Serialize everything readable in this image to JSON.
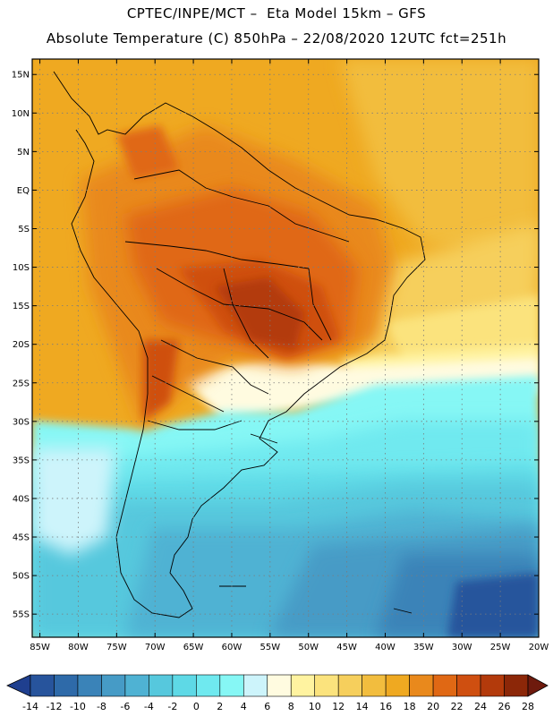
{
  "header": {
    "line1": "CPTEC/INPE/MCT –  Eta Model 15km – GFS",
    "line2": "Absolute Temperature (C) 850hPa – 22/08/2020 12UTC fct=251h"
  },
  "map": {
    "lat_labels": [
      "15N",
      "10N",
      "5N",
      "EQ",
      "5S",
      "10S",
      "15S",
      "20S",
      "25S",
      "30S",
      "35S",
      "40S",
      "45S",
      "50S",
      "55S"
    ],
    "lon_labels": [
      "85W",
      "80W",
      "75W",
      "70W",
      "65W",
      "60W",
      "55W",
      "50W",
      "45W",
      "40W",
      "35W",
      "30W",
      "25W",
      "20W"
    ],
    "lat_range": [
      17,
      -58
    ],
    "lon_range": [
      -86,
      -20
    ],
    "grid": "dotted"
  },
  "colorbar": {
    "labels": [
      "-14",
      "-12",
      "-10",
      "-8",
      "-6",
      "-4",
      "-2",
      "0",
      "2",
      "4",
      "6",
      "8",
      "10",
      "12",
      "14",
      "16",
      "18",
      "20",
      "22",
      "24",
      "26",
      "28"
    ],
    "colors": [
      "#1f3f8f",
      "#27549c",
      "#2e6aa9",
      "#3a83b8",
      "#469bc6",
      "#4fb2d3",
      "#56c8dd",
      "#5ed9e6",
      "#6fe9ef",
      "#86f7f5",
      "#cdf4fb",
      "#fffbe0",
      "#fff3a0",
      "#fbe37d",
      "#f6cf5c",
      "#f2bd3e",
      "#efa921",
      "#e9891c",
      "#e06814",
      "#cf4f10",
      "#b33a0b",
      "#8c2708",
      "#6e1a0d"
    ]
  }
}
